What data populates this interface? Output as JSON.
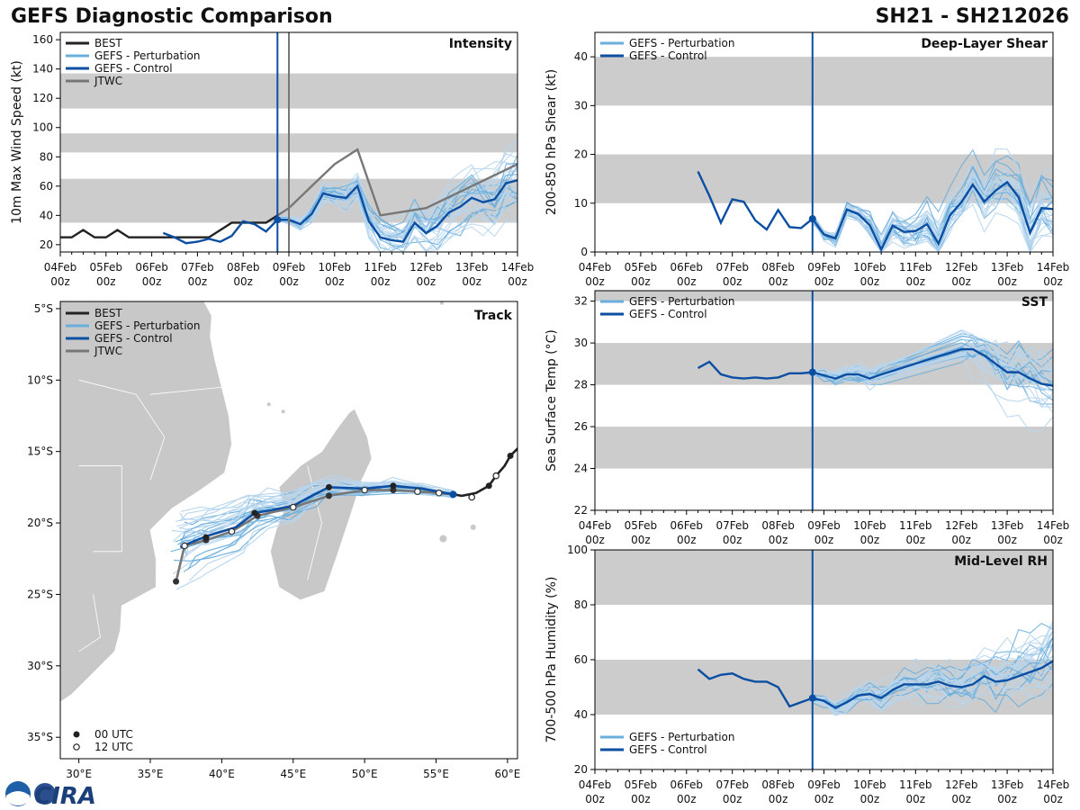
{
  "header": {
    "title": "GEFS Diagnostic Comparison",
    "storm_id": "SH21 - SH212026"
  },
  "colors": {
    "best": "#222222",
    "pert": "#6aaedb",
    "pert_light": "#b8d6ee",
    "control": "#0b4ea2",
    "jtwc": "#777777",
    "band": "#cccccc",
    "land": "#c8c8c8"
  },
  "time_axis": {
    "ticks": [
      0,
      1,
      2,
      3,
      4,
      5,
      6,
      7,
      8,
      9,
      10
    ],
    "labels": [
      "04Feb",
      "05Feb",
      "06Feb",
      "07Feb",
      "08Feb",
      "09Feb",
      "10Feb",
      "11Feb",
      "12Feb",
      "13Feb",
      "14Feb"
    ],
    "sublabel": "00z",
    "init_day": 4.75,
    "jtwc_day": 5.0
  },
  "chart_data": [
    {
      "id": "intensity",
      "type": "line",
      "title": "Intensity",
      "ylabel": "10m Max Wind Speed (kt)",
      "ylim": [
        15,
        165
      ],
      "yticks": [
        20,
        40,
        60,
        80,
        100,
        120,
        140,
        160
      ],
      "bands": [
        [
          35,
          65
        ],
        [
          83,
          96
        ],
        [
          113,
          137
        ]
      ],
      "legend": [
        "BEST",
        "GEFS - Perturbation",
        "GEFS - Control",
        "JTWC"
      ],
      "series": [
        {
          "name": "BEST",
          "x": [
            0,
            0.25,
            0.5,
            0.75,
            1,
            1.25,
            1.5,
            1.75,
            2,
            2.25,
            2.5,
            2.75,
            3,
            3.25,
            3.5,
            3.75,
            4,
            4.25,
            4.5,
            4.75
          ],
          "values": [
            25,
            25,
            30,
            25,
            25,
            30,
            25,
            25,
            25,
            25,
            25,
            25,
            25,
            25,
            30,
            35,
            35,
            35,
            35,
            40
          ]
        },
        {
          "name": "GEFS - Control",
          "x": [
            2.25,
            2.5,
            2.75,
            3,
            3.25,
            3.5,
            3.75,
            4,
            4.25,
            4.5,
            4.75,
            5,
            5.25,
            5.5,
            5.75,
            6,
            6.25,
            6.5,
            6.75,
            7,
            7.25,
            7.5,
            7.75,
            8,
            8.25,
            8.5,
            8.75,
            9,
            9.25,
            9.5,
            9.75,
            10
          ],
          "values": [
            28,
            25,
            21,
            22,
            24,
            22,
            26,
            36,
            34,
            29,
            37,
            37,
            34,
            41,
            55,
            53,
            52,
            60,
            36,
            25,
            23,
            22,
            35,
            28,
            33,
            42,
            46,
            52,
            49,
            51,
            62,
            64
          ]
        },
        {
          "name": "JTWC",
          "x": [
            4.75,
            5,
            5.5,
            6,
            6.5,
            7,
            8,
            10
          ],
          "values": [
            40,
            45,
            60,
            75,
            85,
            40,
            45,
            75
          ]
        }
      ],
      "perturbation_count": 30
    },
    {
      "id": "shear",
      "type": "line",
      "title": "Deep-Layer Shear",
      "ylabel": "200-850 hPa Shear (kt)",
      "ylim": [
        0,
        45
      ],
      "yticks": [
        0,
        10,
        20,
        30,
        40
      ],
      "bands": [
        [
          10,
          20
        ],
        [
          30,
          40
        ]
      ],
      "legend": [
        "GEFS - Perturbation",
        "GEFS - Control"
      ],
      "series": [
        {
          "name": "GEFS - Control",
          "x": [
            2.25,
            2.5,
            2.75,
            3,
            3.25,
            3.5,
            3.75,
            4,
            4.25,
            4.5,
            4.75,
            5,
            5.25,
            5.5,
            5.75,
            6,
            6.25,
            6.5,
            6.75,
            7,
            7.25,
            7.5,
            7.75,
            8,
            8.25,
            8.5,
            8.75,
            9,
            9.25,
            9.5,
            9.75,
            10
          ],
          "values": [
            16.5,
            11.5,
            6,
            10.8,
            10.3,
            6.5,
            4.6,
            8.6,
            5.1,
            4.9,
            6.8,
            3.6,
            2.8,
            8.7,
            7.8,
            5.5,
            0.5,
            5.4,
            4.1,
            4.3,
            5.7,
            1.7,
            7.5,
            10.2,
            13.8,
            10.3,
            12.6,
            14.3,
            11.2,
            3.9,
            9.0,
            8.8
          ]
        }
      ],
      "perturbation_count": 30
    },
    {
      "id": "sst",
      "type": "line",
      "title": "SST",
      "ylabel": "Sea Surface Temp (°C)",
      "ylim": [
        22,
        32.5
      ],
      "yticks": [
        22,
        24,
        26,
        28,
        30,
        32
      ],
      "bands": [
        [
          24,
          26
        ],
        [
          28,
          30
        ],
        [
          32,
          32.5
        ]
      ],
      "legend": [
        "GEFS - Perturbation",
        "GEFS - Control"
      ],
      "series": [
        {
          "name": "GEFS - Control",
          "x": [
            2.25,
            2.5,
            2.75,
            3,
            3.25,
            3.5,
            3.75,
            4,
            4.25,
            4.5,
            4.75,
            5,
            5.25,
            5.5,
            5.75,
            6,
            6.25,
            8,
            8.25,
            8.5,
            8.75,
            9,
            9.25,
            9.5,
            9.75,
            10
          ],
          "values": [
            28.8,
            29.1,
            28.5,
            28.35,
            28.3,
            28.35,
            28.3,
            28.35,
            28.55,
            28.55,
            28.6,
            28.45,
            28.3,
            28.5,
            28.5,
            28.3,
            28.5,
            29.7,
            29.7,
            29.4,
            29.0,
            28.6,
            28.6,
            28.3,
            28.05,
            27.95
          ]
        }
      ],
      "perturbation_count": 30
    },
    {
      "id": "rh",
      "type": "line",
      "title": "Mid-Level RH",
      "ylabel": "700-500 hPa Humidity (%)",
      "ylim": [
        20,
        100
      ],
      "yticks": [
        20,
        40,
        60,
        80,
        100
      ],
      "bands": [
        [
          40,
          60
        ],
        [
          80,
          100
        ]
      ],
      "legend": [
        "GEFS - Perturbation",
        "GEFS - Control"
      ],
      "series": [
        {
          "name": "GEFS - Control",
          "x": [
            2.25,
            2.5,
            2.75,
            3,
            3.25,
            3.5,
            3.75,
            4,
            4.25,
            4.5,
            4.75,
            5,
            5.25,
            5.5,
            5.75,
            6,
            6.25,
            6.5,
            6.75,
            7,
            7.25,
            7.5,
            7.75,
            8,
            8.25,
            8.5,
            8.75,
            9,
            9.25,
            9.5,
            9.75,
            10
          ],
          "values": [
            56.5,
            53,
            54.5,
            55,
            53,
            52,
            52,
            50,
            43,
            44.5,
            46,
            45,
            42.5,
            44.5,
            47,
            47.5,
            46,
            49,
            51,
            51,
            51,
            52,
            50.5,
            50,
            51,
            54,
            52,
            52.5,
            54,
            55.5,
            57,
            59.5
          ]
        }
      ],
      "perturbation_count": 30
    }
  ],
  "track": {
    "title": "Track",
    "legend": [
      "BEST",
      "GEFS - Perturbation",
      "GEFS - Control",
      "JTWC"
    ],
    "lon_ticks": [
      30,
      35,
      40,
      45,
      50,
      55,
      60
    ],
    "lon_labels": [
      "30°E",
      "35°E",
      "40°E",
      "45°E",
      "50°E",
      "55°E",
      "60°E"
    ],
    "lat_ticks": [
      -5,
      -10,
      -15,
      -20,
      -25,
      -30,
      -35
    ],
    "lat_labels": [
      "5°S",
      "10°S",
      "15°S",
      "20°S",
      "25°S",
      "30°S",
      "35°S"
    ],
    "lon_range": [
      28.7,
      60.7
    ],
    "lat_range": [
      -36.5,
      -4.5
    ],
    "best": [
      [
        60.8,
        -14.7
      ],
      [
        60.2,
        -15.3
      ],
      [
        59.8,
        -16.0
      ],
      [
        59.2,
        -16.7
      ],
      [
        58.7,
        -17.4
      ],
      [
        57.8,
        -17.9
      ],
      [
        56.8,
        -18.1
      ],
      [
        56.2,
        -18.0
      ]
    ],
    "best_00utc": [
      [
        60.2,
        -15.3
      ],
      [
        58.7,
        -17.4
      ],
      [
        56.2,
        -18.0
      ]
    ],
    "best_12utc": [
      [
        59.2,
        -16.7
      ],
      [
        57.5,
        -18.2
      ]
    ],
    "control": [
      [
        56.2,
        -18.0
      ],
      [
        54.0,
        -17.6
      ],
      [
        52.0,
        -17.4
      ],
      [
        50.0,
        -17.6
      ],
      [
        47.5,
        -17.5
      ],
      [
        46.5,
        -18.0
      ],
      [
        45.0,
        -18.8
      ],
      [
        43.5,
        -19.1
      ],
      [
        42.3,
        -19.3
      ],
      [
        41.0,
        -20.3
      ],
      [
        39.0,
        -20.9
      ],
      [
        38.0,
        -21.3
      ],
      [
        37.1,
        -21.7
      ]
    ],
    "control_00utc": [
      [
        52.0,
        -17.4
      ],
      [
        47.5,
        -17.5
      ],
      [
        42.3,
        -19.3
      ],
      [
        38.9,
        -21.0
      ]
    ],
    "jtwc": [
      [
        56.2,
        -18.0
      ],
      [
        53.8,
        -17.8
      ],
      [
        52.0,
        -17.7
      ],
      [
        50.0,
        -17.7
      ],
      [
        47.5,
        -18.1
      ],
      [
        45.0,
        -18.9
      ],
      [
        42.5,
        -19.5
      ],
      [
        40.7,
        -20.6
      ],
      [
        38.9,
        -21.2
      ],
      [
        37.4,
        -21.6
      ],
      [
        36.8,
        -24.1
      ]
    ],
    "jtwc_00utc": [
      [
        52.0,
        -17.7
      ],
      [
        47.5,
        -18.1
      ],
      [
        42.5,
        -19.5
      ],
      [
        38.9,
        -21.2
      ],
      [
        36.8,
        -24.1
      ]
    ],
    "jtwc_12utc": [
      [
        55.2,
        -17.9
      ],
      [
        53.7,
        -17.8
      ],
      [
        50.0,
        -17.7
      ],
      [
        45.0,
        -18.9
      ],
      [
        40.7,
        -20.6
      ],
      [
        37.4,
        -21.6
      ]
    ],
    "marker_legend": [
      "00 UTC",
      "12 UTC"
    ],
    "perturbation_count": 30
  },
  "logo": {
    "text": "CIRA"
  }
}
